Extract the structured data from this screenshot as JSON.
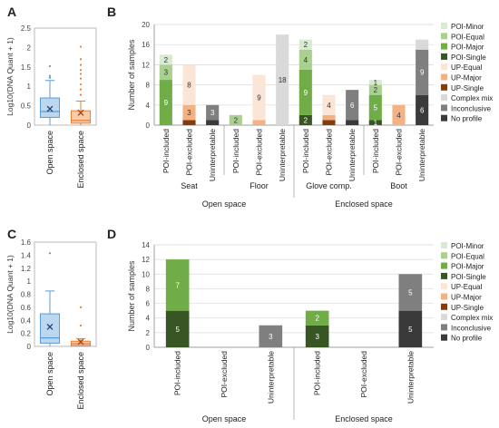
{
  "colors": {
    "poi_minor": "#d9ead3",
    "poi_equal": "#a9d08e",
    "poi_major": "#70ad47",
    "poi_single": "#375623",
    "up_equal": "#fbe5d6",
    "up_major": "#f4b183",
    "up_single": "#843c0c",
    "complex_mix": "#d9d9d9",
    "inconclusive": "#7f7f7f",
    "no_profile": "#3a3a3a",
    "box_blue_fill": "#bdd7ee",
    "box_blue_edge": "#5b9bd5",
    "box_orange_fill": "#f8cbad",
    "box_orange_edge": "#ed7d31"
  },
  "legend_items": [
    {
      "key": "poi_minor",
      "label": "POI-Minor"
    },
    {
      "key": "poi_equal",
      "label": "POI-Equal"
    },
    {
      "key": "poi_major",
      "label": "POI-Major"
    },
    {
      "key": "poi_single",
      "label": "POI-Single"
    },
    {
      "key": "up_equal",
      "label": "UP-Equal"
    },
    {
      "key": "up_major",
      "label": "UP-Major"
    },
    {
      "key": "up_single",
      "label": "UP-Single"
    },
    {
      "key": "complex_mix",
      "label": "Complex mix"
    },
    {
      "key": "inconclusive",
      "label": "Inconclusive"
    },
    {
      "key": "no_profile",
      "label": "No profile"
    }
  ],
  "chart_data": [
    {
      "panel": "A",
      "type": "box",
      "ylabel": "Log10(DNA Quant + 1)",
      "ylim": [
        0,
        2.5
      ],
      "yticks": [
        "0",
        "0.5",
        "1",
        "1.5",
        "2",
        "2.5"
      ],
      "groups": [
        {
          "label": "Open space",
          "color": "blue",
          "min": 0.0,
          "q1": 0.2,
          "median": 0.35,
          "q3": 0.7,
          "max": 1.15,
          "mean": 0.42,
          "outliers": [
            1.22,
            1.27,
            1.52
          ]
        },
        {
          "label": "Enclosed space",
          "color": "orange",
          "min": 0.0,
          "q1": 0.05,
          "median": 0.12,
          "q3": 0.37,
          "max": 0.62,
          "mean": 0.32,
          "outliers": [
            0.78,
            0.92,
            1.05,
            1.2,
            1.32,
            1.42,
            1.55,
            1.7,
            2.02
          ]
        }
      ]
    },
    {
      "panel": "B",
      "type": "stacked_bar",
      "ylabel": "Number of samples",
      "ylim": [
        0,
        20
      ],
      "yticks": [
        "0",
        "4",
        "8",
        "12",
        "16",
        "20"
      ],
      "bars": [
        {
          "label": "POI-included",
          "segments": [
            {
              "cat": "poi_major",
              "value": 9,
              "label": "9"
            },
            {
              "cat": "poi_equal",
              "value": 3,
              "label": "3"
            },
            {
              "cat": "poi_minor",
              "value": 2,
              "label": "2"
            }
          ]
        },
        {
          "label": "POI-excluded",
          "segments": [
            {
              "cat": "up_single",
              "value": 1,
              "label": ""
            },
            {
              "cat": "up_major",
              "value": 3,
              "label": "3"
            },
            {
              "cat": "up_equal",
              "value": 8,
              "label": "8"
            }
          ]
        },
        {
          "label": "Uninterpretable",
          "segments": [
            {
              "cat": "no_profile",
              "value": 1,
              "label": ""
            },
            {
              "cat": "inconclusive",
              "value": 3,
              "label": "3"
            }
          ]
        },
        {
          "label": "POI-included",
          "segments": [
            {
              "cat": "poi_equal",
              "value": 2,
              "label": "2"
            }
          ]
        },
        {
          "label": "POI-excluded",
          "segments": [
            {
              "cat": "up_major",
              "value": 1,
              "label": ""
            },
            {
              "cat": "up_equal",
              "value": 9,
              "label": "9"
            }
          ]
        },
        {
          "label": "Uninterpretable",
          "segments": [
            {
              "cat": "complex_mix",
              "value": 18,
              "label": "18"
            }
          ]
        },
        {
          "label": "POI-included",
          "segments": [
            {
              "cat": "poi_single",
              "value": 2,
              "label": "2"
            },
            {
              "cat": "poi_major",
              "value": 9,
              "label": "9"
            },
            {
              "cat": "poi_equal",
              "value": 4,
              "label": "4"
            },
            {
              "cat": "poi_minor",
              "value": 2,
              "label": "2"
            }
          ]
        },
        {
          "label": "POI-excluded",
          "segments": [
            {
              "cat": "up_single",
              "value": 1,
              "label": ""
            },
            {
              "cat": "up_major",
              "value": 1,
              "label": ""
            },
            {
              "cat": "up_equal",
              "value": 4,
              "label": "4"
            }
          ]
        },
        {
          "label": "Uninterpretable",
          "segments": [
            {
              "cat": "no_profile",
              "value": 1,
              "label": ""
            },
            {
              "cat": "inconclusive",
              "value": 6,
              "label": "6"
            }
          ]
        },
        {
          "label": "POI-included",
          "segments": [
            {
              "cat": "poi_single",
              "value": 1,
              "label": "1"
            },
            {
              "cat": "poi_major",
              "value": 5,
              "label": "5"
            },
            {
              "cat": "poi_equal",
              "value": 2,
              "label": "2"
            },
            {
              "cat": "poi_minor",
              "value": 1,
              "label": "1"
            }
          ]
        },
        {
          "label": "POI-excluded",
          "segments": [
            {
              "cat": "up_major",
              "value": 4,
              "label": "4"
            }
          ]
        },
        {
          "label": "Uninterpretable",
          "segments": [
            {
              "cat": "no_profile",
              "value": 6,
              "label": "6"
            },
            {
              "cat": "inconclusive",
              "value": 9,
              "label": "9"
            },
            {
              "cat": "complex_mix",
              "value": 2,
              "label": ""
            }
          ]
        }
      ],
      "subgroups": [
        "Seat",
        "Floor",
        "Glove comp.",
        "Boot"
      ],
      "groups": [
        "Open space",
        "Enclosed space"
      ]
    },
    {
      "panel": "C",
      "type": "box",
      "ylabel": "Log10(DNA Quant + 1)",
      "ylim": [
        0,
        1.6
      ],
      "yticks": [
        "0",
        "0.2",
        "0.4",
        "0.6",
        "0.8",
        "1",
        "1.2",
        "1.4",
        "1.6"
      ],
      "groups": [
        {
          "label": "Open space",
          "color": "blue",
          "min": 0.0,
          "q1": 0.05,
          "median": 0.13,
          "q3": 0.5,
          "max": 0.85,
          "mean": 0.3,
          "outliers": [
            1.43
          ]
        },
        {
          "label": "Enclosed space",
          "color": "orange",
          "min": 0.0,
          "q1": 0.01,
          "median": 0.04,
          "q3": 0.08,
          "max": 0.12,
          "mean": 0.07,
          "outliers": [
            0.32,
            0.6
          ]
        }
      ]
    },
    {
      "panel": "D",
      "type": "stacked_bar",
      "ylabel": "Number of samples",
      "ylim": [
        0,
        14
      ],
      "yticks": [
        "0",
        "2",
        "4",
        "6",
        "8",
        "10",
        "12",
        "14"
      ],
      "bars": [
        {
          "label": "POI-included",
          "segments": [
            {
              "cat": "poi_single",
              "value": 5,
              "label": "5"
            },
            {
              "cat": "poi_major",
              "value": 7,
              "label": "7"
            }
          ]
        },
        {
          "label": "POI-excluded",
          "segments": []
        },
        {
          "label": "Uninterpretable",
          "segments": [
            {
              "cat": "inconclusive",
              "value": 3,
              "label": "3"
            }
          ]
        },
        {
          "label": "POI-included",
          "segments": [
            {
              "cat": "poi_single",
              "value": 3,
              "label": "3"
            },
            {
              "cat": "poi_major",
              "value": 2,
              "label": "2"
            }
          ]
        },
        {
          "label": "POI-excluded",
          "segments": []
        },
        {
          "label": "Uninterpretable",
          "segments": [
            {
              "cat": "no_profile",
              "value": 5,
              "label": "5"
            },
            {
              "cat": "inconclusive",
              "value": 5,
              "label": "5"
            }
          ]
        }
      ],
      "groups": [
        "Open space",
        "Enclosed space"
      ]
    }
  ]
}
